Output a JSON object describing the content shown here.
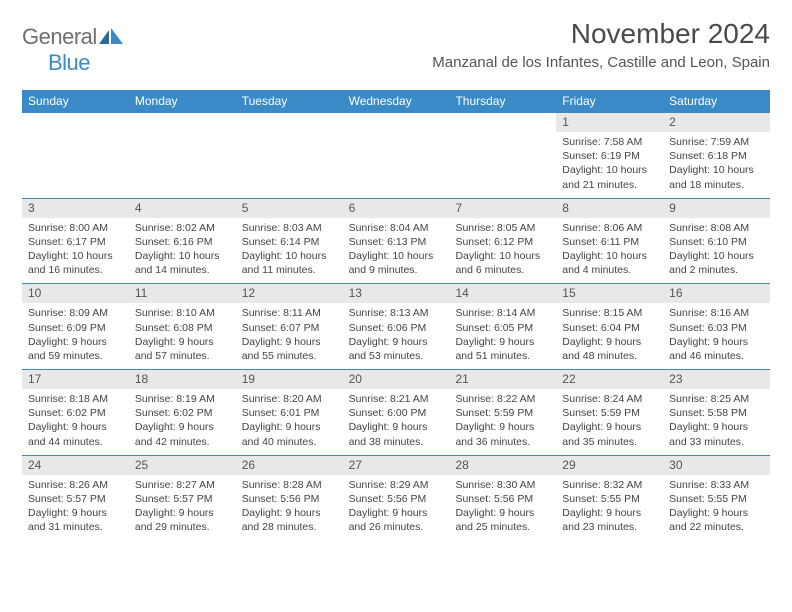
{
  "brand": {
    "part1": "General",
    "part2": "Blue"
  },
  "title": "November 2024",
  "location": "Manzanal de los Infantes, Castille and Leon, Spain",
  "colors": {
    "header_bg": "#3a8ac8",
    "header_text": "#ffffff",
    "daynum_bg": "#e8e8e8",
    "row_border": "#3a8ac8",
    "body_text": "#444444",
    "title_text": "#4a4a4a"
  },
  "dayNames": [
    "Sunday",
    "Monday",
    "Tuesday",
    "Wednesday",
    "Thursday",
    "Friday",
    "Saturday"
  ],
  "weeks": [
    [
      {
        "n": "",
        "empty": true
      },
      {
        "n": "",
        "empty": true
      },
      {
        "n": "",
        "empty": true
      },
      {
        "n": "",
        "empty": true
      },
      {
        "n": "",
        "empty": true
      },
      {
        "n": "1",
        "sr": "7:58 AM",
        "ss": "6:19 PM",
        "dl": "10 hours and 21 minutes."
      },
      {
        "n": "2",
        "sr": "7:59 AM",
        "ss": "6:18 PM",
        "dl": "10 hours and 18 minutes."
      }
    ],
    [
      {
        "n": "3",
        "sr": "8:00 AM",
        "ss": "6:17 PM",
        "dl": "10 hours and 16 minutes."
      },
      {
        "n": "4",
        "sr": "8:02 AM",
        "ss": "6:16 PM",
        "dl": "10 hours and 14 minutes."
      },
      {
        "n": "5",
        "sr": "8:03 AM",
        "ss": "6:14 PM",
        "dl": "10 hours and 11 minutes."
      },
      {
        "n": "6",
        "sr": "8:04 AM",
        "ss": "6:13 PM",
        "dl": "10 hours and 9 minutes."
      },
      {
        "n": "7",
        "sr": "8:05 AM",
        "ss": "6:12 PM",
        "dl": "10 hours and 6 minutes."
      },
      {
        "n": "8",
        "sr": "8:06 AM",
        "ss": "6:11 PM",
        "dl": "10 hours and 4 minutes."
      },
      {
        "n": "9",
        "sr": "8:08 AM",
        "ss": "6:10 PM",
        "dl": "10 hours and 2 minutes."
      }
    ],
    [
      {
        "n": "10",
        "sr": "8:09 AM",
        "ss": "6:09 PM",
        "dl": "9 hours and 59 minutes."
      },
      {
        "n": "11",
        "sr": "8:10 AM",
        "ss": "6:08 PM",
        "dl": "9 hours and 57 minutes."
      },
      {
        "n": "12",
        "sr": "8:11 AM",
        "ss": "6:07 PM",
        "dl": "9 hours and 55 minutes."
      },
      {
        "n": "13",
        "sr": "8:13 AM",
        "ss": "6:06 PM",
        "dl": "9 hours and 53 minutes."
      },
      {
        "n": "14",
        "sr": "8:14 AM",
        "ss": "6:05 PM",
        "dl": "9 hours and 51 minutes."
      },
      {
        "n": "15",
        "sr": "8:15 AM",
        "ss": "6:04 PM",
        "dl": "9 hours and 48 minutes."
      },
      {
        "n": "16",
        "sr": "8:16 AM",
        "ss": "6:03 PM",
        "dl": "9 hours and 46 minutes."
      }
    ],
    [
      {
        "n": "17",
        "sr": "8:18 AM",
        "ss": "6:02 PM",
        "dl": "9 hours and 44 minutes."
      },
      {
        "n": "18",
        "sr": "8:19 AM",
        "ss": "6:02 PM",
        "dl": "9 hours and 42 minutes."
      },
      {
        "n": "19",
        "sr": "8:20 AM",
        "ss": "6:01 PM",
        "dl": "9 hours and 40 minutes."
      },
      {
        "n": "20",
        "sr": "8:21 AM",
        "ss": "6:00 PM",
        "dl": "9 hours and 38 minutes."
      },
      {
        "n": "21",
        "sr": "8:22 AM",
        "ss": "5:59 PM",
        "dl": "9 hours and 36 minutes."
      },
      {
        "n": "22",
        "sr": "8:24 AM",
        "ss": "5:59 PM",
        "dl": "9 hours and 35 minutes."
      },
      {
        "n": "23",
        "sr": "8:25 AM",
        "ss": "5:58 PM",
        "dl": "9 hours and 33 minutes."
      }
    ],
    [
      {
        "n": "24",
        "sr": "8:26 AM",
        "ss": "5:57 PM",
        "dl": "9 hours and 31 minutes."
      },
      {
        "n": "25",
        "sr": "8:27 AM",
        "ss": "5:57 PM",
        "dl": "9 hours and 29 minutes."
      },
      {
        "n": "26",
        "sr": "8:28 AM",
        "ss": "5:56 PM",
        "dl": "9 hours and 28 minutes."
      },
      {
        "n": "27",
        "sr": "8:29 AM",
        "ss": "5:56 PM",
        "dl": "9 hours and 26 minutes."
      },
      {
        "n": "28",
        "sr": "8:30 AM",
        "ss": "5:56 PM",
        "dl": "9 hours and 25 minutes."
      },
      {
        "n": "29",
        "sr": "8:32 AM",
        "ss": "5:55 PM",
        "dl": "9 hours and 23 minutes."
      },
      {
        "n": "30",
        "sr": "8:33 AM",
        "ss": "5:55 PM",
        "dl": "9 hours and 22 minutes."
      }
    ]
  ],
  "labels": {
    "sunrise": "Sunrise: ",
    "sunset": "Sunset: ",
    "daylight": "Daylight: "
  }
}
